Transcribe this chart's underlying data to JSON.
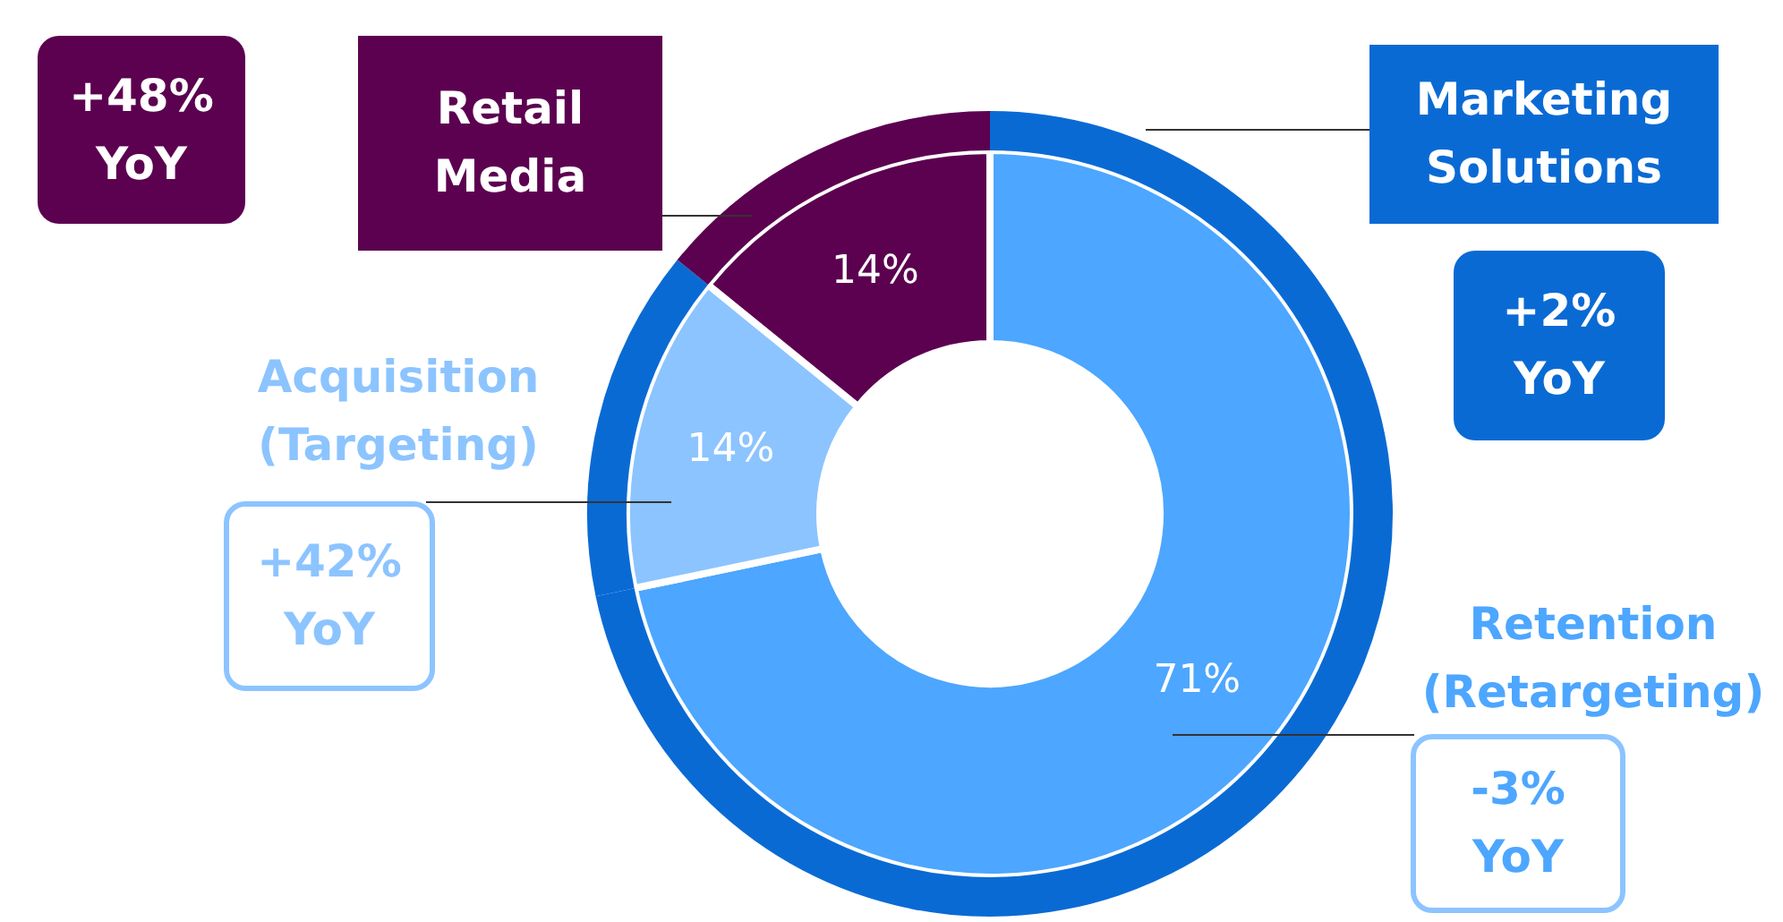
{
  "chart_data": {
    "type": "donut",
    "categories": [
      "Retention (Retargeting)",
      "Acquisition (Targeting)",
      "Retail Media"
    ],
    "series": [
      {
        "colors": [
          "#4da6ff",
          "#8cc4ff",
          "#5c0050"
        ],
        "values": [
          71,
          14,
          14
        ],
        "value_labels": [
          "71%",
          "14%",
          "14%"
        ]
      },
      {
        "colors": [
          "#0a6ad4",
          "#0a6ad4",
          "#5c0050"
        ],
        "values": [
          71,
          14,
          14
        ]
      }
    ],
    "annotations": [
      "Marketing Solutions",
      "+48% YoY",
      "+2% YoY",
      "+42% YoY",
      "-3% YoY"
    ],
    "legend": false
  }
}
